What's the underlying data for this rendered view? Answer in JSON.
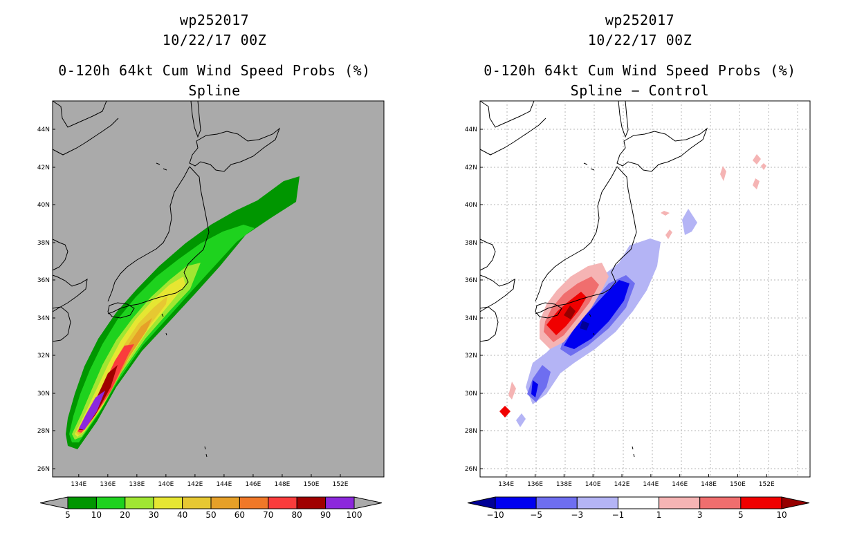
{
  "left_panel": {
    "storm_id": "wp252017",
    "datetime": "10/22/17 00Z",
    "product": "0-120h 64kt Cum Wind Speed Probs (%)",
    "subtitle": "Spline"
  },
  "right_panel": {
    "storm_id": "wp252017",
    "datetime": "10/22/17 00Z",
    "product": "0-120h 64kt Cum Wind Speed Probs (%)",
    "subtitle": "Spline − Control"
  },
  "lat_labels": [
    "44N",
    "42N",
    "40N",
    "38N",
    "36N",
    "34N",
    "32N",
    "30N",
    "28N",
    "26N"
  ],
  "lon_labels": [
    "134E",
    "136E",
    "138E",
    "140E",
    "142E",
    "144E",
    "146E",
    "148E",
    "150E",
    "152E"
  ],
  "left_colorbar": {
    "labels": [
      "5",
      "10",
      "20",
      "30",
      "40",
      "50",
      "60",
      "70",
      "80",
      "90",
      "100"
    ],
    "colors": [
      "#aaaaaa",
      "#009600",
      "#1ed21e",
      "#a0e632",
      "#e6e632",
      "#e6c832",
      "#e6a028",
      "#f07828",
      "#fa3c3c",
      "#a00000",
      "#8c28dc",
      "#aaaaaa"
    ]
  },
  "right_colorbar": {
    "labels": [
      "−10",
      "−5",
      "−3",
      "−1",
      "1",
      "3",
      "5",
      "10"
    ],
    "colors": [
      "#000096",
      "#0000f0",
      "#6e6ef0",
      "#b4b4f5",
      "#ffffff",
      "#f5b4b4",
      "#f06e6e",
      "#f00000",
      "#960000"
    ]
  }
}
